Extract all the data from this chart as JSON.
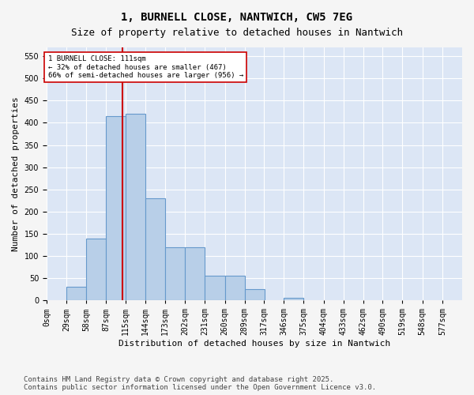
{
  "title": "1, BURNELL CLOSE, NANTWICH, CW5 7EG",
  "subtitle": "Size of property relative to detached houses in Nantwich",
  "xlabel": "Distribution of detached houses by size in Nantwich",
  "ylabel": "Number of detached properties",
  "bin_labels": [
    "0sqm",
    "29sqm",
    "58sqm",
    "87sqm",
    "115sqm",
    "144sqm",
    "173sqm",
    "202sqm",
    "231sqm",
    "260sqm",
    "289sqm",
    "317sqm",
    "346sqm",
    "375sqm",
    "404sqm",
    "433sqm",
    "462sqm",
    "490sqm",
    "519sqm",
    "548sqm",
    "577sqm"
  ],
  "bin_edges": [
    0,
    29,
    58,
    87,
    115,
    144,
    173,
    202,
    231,
    260,
    289,
    317,
    346,
    375,
    404,
    433,
    462,
    490,
    519,
    548,
    577
  ],
  "bar_heights": [
    0,
    30,
    140,
    415,
    420,
    230,
    120,
    120,
    55,
    55,
    25,
    0,
    5,
    0,
    0,
    0,
    0,
    0,
    0,
    0
  ],
  "bar_color": "#b8cfe8",
  "bar_edge_color": "#6699cc",
  "property_size": 111,
  "annotation_text": "1 BURNELL CLOSE: 111sqm\n← 32% of detached houses are smaller (467)\n66% of semi-detached houses are larger (956) →",
  "annotation_box_color": "#ffffff",
  "annotation_box_edge_color": "#cc0000",
  "vline_color": "#cc0000",
  "plot_bg_color": "#dce6f5",
  "fig_bg_color": "#f5f5f5",
  "grid_color": "#ffffff",
  "ylim": [
    0,
    570
  ],
  "yticks": [
    0,
    50,
    100,
    150,
    200,
    250,
    300,
    350,
    400,
    450,
    500,
    550
  ],
  "footnote": "Contains HM Land Registry data © Crown copyright and database right 2025.\nContains public sector information licensed under the Open Government Licence v3.0.",
  "title_fontsize": 10,
  "subtitle_fontsize": 9,
  "xlabel_fontsize": 8,
  "ylabel_fontsize": 8,
  "tick_fontsize": 7,
  "footnote_fontsize": 6.5
}
